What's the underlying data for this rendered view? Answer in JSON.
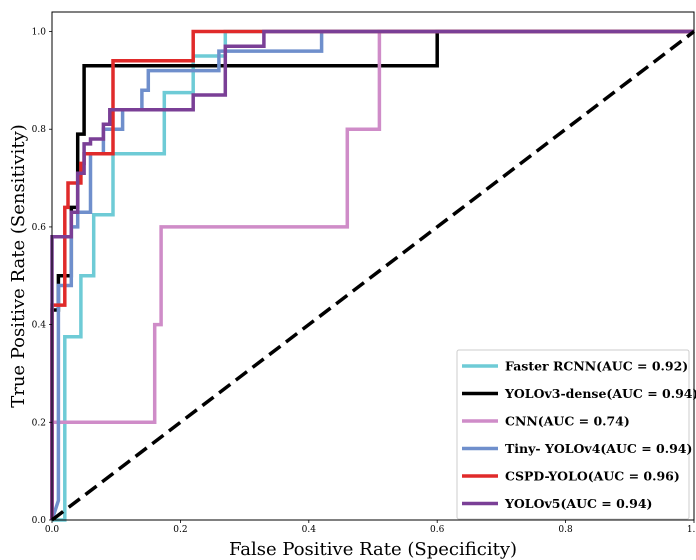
{
  "chart_data": {
    "type": "line",
    "title": "",
    "xlabel": "False Positive Rate (Specificity)",
    "ylabel": "True Positive Rate (Sensitivity)",
    "xlim": [
      0,
      1
    ],
    "ylim": [
      0,
      1.04
    ],
    "x_ticks": [
      "0.0",
      "0.2",
      "0.4",
      "0.6",
      "0.8",
      "1.0"
    ],
    "y_ticks": [
      "0.0",
      "0.2",
      "0.4",
      "0.6",
      "0.8",
      "1.0"
    ],
    "grid": false,
    "legend_position": "lower-right",
    "diagonal": {
      "x": [
        0,
        1
      ],
      "y": [
        0,
        1
      ],
      "style": "dashed",
      "color": "#000000"
    },
    "series": [
      {
        "name": "Faster RCNN(AUC = 0.92)",
        "color": "#6ecbd6",
        "x": [
          0,
          0.02,
          0.02,
          0.045,
          0.045,
          0.065,
          0.065,
          0.095,
          0.095,
          0.175,
          0.175,
          0.22,
          0.22,
          0.27,
          0.27,
          1.0
        ],
        "y": [
          0,
          0,
          0.375,
          0.375,
          0.5,
          0.5,
          0.625,
          0.625,
          0.75,
          0.75,
          0.875,
          0.875,
          0.95,
          0.95,
          1.0,
          1.0
        ]
      },
      {
        "name": "YOLOv3-dense(AUC = 0.94)",
        "color": "#000000",
        "x": [
          0,
          0,
          0.01,
          0.01,
          0.03,
          0.03,
          0.04,
          0.04,
          0.05,
          0.05,
          0.6,
          0.6,
          1.0
        ],
        "y": [
          0,
          0.43,
          0.43,
          0.5,
          0.5,
          0.64,
          0.64,
          0.79,
          0.79,
          0.93,
          0.93,
          1.0,
          1.0
        ]
      },
      {
        "name": "CNN(AUC = 0.74)",
        "color": "#cf8cc8",
        "x": [
          0,
          0,
          0.16,
          0.16,
          0.17,
          0.17,
          0.46,
          0.46,
          0.51,
          0.51,
          1.0
        ],
        "y": [
          0,
          0.2,
          0.2,
          0.4,
          0.4,
          0.6,
          0.6,
          0.8,
          0.8,
          1.0,
          1.0
        ]
      },
      {
        "name": "Tiny- YOLOv4(AUC = 0.94)",
        "color": "#6f8fcc",
        "x": [
          0,
          0.01,
          0.01,
          0.03,
          0.03,
          0.04,
          0.04,
          0.06,
          0.06,
          0.08,
          0.08,
          0.11,
          0.11,
          0.14,
          0.14,
          0.15,
          0.15,
          0.26,
          0.26,
          0.28,
          0.28,
          0.42,
          0.42,
          1.0
        ],
        "y": [
          0,
          0.04,
          0.48,
          0.48,
          0.6,
          0.6,
          0.63,
          0.63,
          0.75,
          0.75,
          0.8,
          0.8,
          0.84,
          0.84,
          0.88,
          0.88,
          0.92,
          0.92,
          0.96,
          0.96,
          0.96,
          0.96,
          1.0,
          1.0
        ]
      },
      {
        "name": "CSPD-YOLO(AUC = 0.96)",
        "color": "#e02a2a",
        "x": [
          0,
          0,
          0.02,
          0.02,
          0.025,
          0.025,
          0.045,
          0.045,
          0.05,
          0.05,
          0.095,
          0.095,
          0.17,
          0.17,
          0.22,
          0.22,
          1.0
        ],
        "y": [
          0,
          0.44,
          0.44,
          0.64,
          0.64,
          0.69,
          0.69,
          0.73,
          0.73,
          0.75,
          0.75,
          0.94,
          0.94,
          0.94,
          0.94,
          1.0,
          1.0
        ]
      },
      {
        "name": "YOLOv5(AUC = 0.94)",
        "color": "#7a3f96",
        "x": [
          0,
          0,
          0.03,
          0.03,
          0.04,
          0.04,
          0.05,
          0.05,
          0.06,
          0.06,
          0.08,
          0.08,
          0.09,
          0.09,
          0.11,
          0.11,
          0.22,
          0.22,
          0.27,
          0.27,
          0.33,
          0.33,
          1.0
        ],
        "y": [
          0,
          0.58,
          0.58,
          0.63,
          0.63,
          0.71,
          0.71,
          0.77,
          0.77,
          0.78,
          0.78,
          0.81,
          0.81,
          0.84,
          0.84,
          0.84,
          0.84,
          0.87,
          0.87,
          0.97,
          0.97,
          1.0,
          1.0
        ]
      }
    ]
  }
}
